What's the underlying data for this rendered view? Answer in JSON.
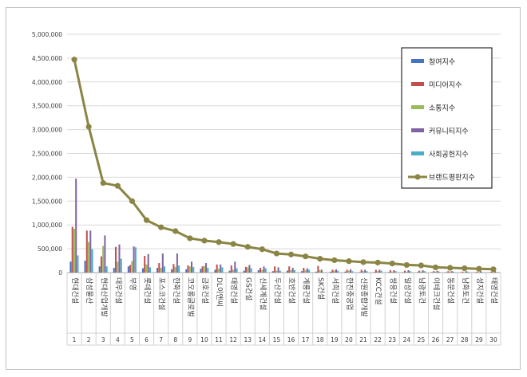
{
  "chart_data": {
    "type": "bar+line",
    "title": "",
    "xlabel": "",
    "ylabel": "",
    "ylim": [
      0,
      5000000
    ],
    "ytick_labels": [
      "0",
      "500,000",
      "1,000,000",
      "1,500,000",
      "2,000,000",
      "2,500,000",
      "3,000,000",
      "3,500,000",
      "4,000,000",
      "4,500,000",
      "5,000,000"
    ],
    "grid": true,
    "legend_position": "right",
    "ranks": [
      "1",
      "2",
      "3",
      "4",
      "5",
      "6",
      "7",
      "8",
      "9",
      "10",
      "11",
      "12",
      "13",
      "14",
      "15",
      "16",
      "17",
      "18",
      "19",
      "20",
      "21",
      "22",
      "23",
      "24",
      "25",
      "26",
      "27",
      "28",
      "29",
      "30"
    ],
    "categories": [
      "현대건설",
      "삼성물산",
      "현대산업개발",
      "대우건설",
      "부영",
      "롯데건설",
      "포스코건설",
      "한화건설",
      "코오롱글로벌",
      "금호건설",
      "DL이앤씨",
      "태영건설",
      "GS건설",
      "신세계건설",
      "두산건설",
      "호반건설",
      "계룡건설",
      "SK건설",
      "서희건설",
      "한진중공업",
      "신원종합개발",
      "KCC건설",
      "쌍용건설",
      "일성건설",
      "남광토건",
      "이테크건설",
      "동문건설",
      "남화토건",
      "성지건설",
      "태영건설"
    ],
    "series": [
      {
        "name": "참여지수",
        "color": "#4472c4",
        "kind": "bar",
        "values": [
          230000,
          250000,
          130000,
          100000,
          130000,
          90000,
          100000,
          70000,
          70000,
          80000,
          60000,
          40000,
          40000,
          50000,
          30000,
          40000,
          30000,
          20000,
          20000,
          20000,
          10000,
          10000,
          10000,
          10000,
          10000,
          10000,
          10000,
          5000,
          5000,
          5000
        ]
      },
      {
        "name": "미디어지수",
        "color": "#c0504d",
        "kind": "bar",
        "values": [
          960000,
          880000,
          340000,
          540000,
          160000,
          350000,
          200000,
          180000,
          150000,
          130000,
          170000,
          150000,
          120000,
          100000,
          130000,
          130000,
          100000,
          140000,
          60000,
          60000,
          60000,
          60000,
          50000,
          40000,
          40000,
          30000,
          30000,
          20000,
          20000,
          20000
        ]
      },
      {
        "name": "소통지수",
        "color": "#9bbb59",
        "kind": "bar",
        "values": [
          920000,
          640000,
          560000,
          230000,
          240000,
          170000,
          100000,
          120000,
          130000,
          140000,
          80000,
          60000,
          110000,
          60000,
          40000,
          50000,
          50000,
          50000,
          40000,
          40000,
          30000,
          30000,
          20000,
          20000,
          20000,
          20000,
          20000,
          10000,
          10000,
          10000
        ]
      },
      {
        "name": "커뮤니티지수",
        "color": "#8064a2",
        "kind": "bar",
        "values": [
          1970000,
          880000,
          780000,
          590000,
          550000,
          390000,
          400000,
          400000,
          230000,
          200000,
          170000,
          230000,
          160000,
          130000,
          110000,
          100000,
          90000,
          60000,
          70000,
          70000,
          60000,
          60000,
          50000,
          50000,
          50000,
          40000,
          30000,
          30000,
          30000,
          30000
        ]
      },
      {
        "name": "사회공헌지수",
        "color": "#4bacc6",
        "kind": "bar",
        "values": [
          360000,
          490000,
          130000,
          290000,
          530000,
          110000,
          130000,
          150000,
          120000,
          100000,
          110000,
          90000,
          90000,
          90000,
          40000,
          50000,
          60000,
          10000,
          40000,
          30000,
          30000,
          40000,
          30000,
          30000,
          30000,
          20000,
          20000,
          20000,
          10000,
          10000
        ]
      },
      {
        "name": "브랜드평판지수",
        "color": "#8b8545",
        "kind": "line",
        "values": [
          4470000,
          3060000,
          1880000,
          1820000,
          1500000,
          1100000,
          950000,
          870000,
          720000,
          670000,
          640000,
          600000,
          540000,
          490000,
          400000,
          380000,
          340000,
          290000,
          260000,
          240000,
          220000,
          210000,
          190000,
          160000,
          150000,
          110000,
          100000,
          90000,
          80000,
          70000
        ]
      }
    ]
  }
}
